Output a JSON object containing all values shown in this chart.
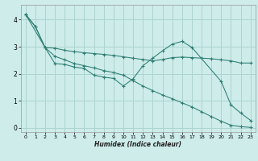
{
  "xlabel": "Humidex (Indice chaleur)",
  "background_color": "#cdecea",
  "grid_color": "#aed4d0",
  "line_color": "#2e7d72",
  "x_ticks": [
    0,
    1,
    2,
    3,
    4,
    5,
    6,
    7,
    8,
    9,
    10,
    11,
    12,
    13,
    14,
    15,
    16,
    17,
    18,
    19,
    20,
    21,
    22,
    23
  ],
  "y_ticks": [
    0,
    1,
    2,
    3,
    4
  ],
  "ylim": [
    -0.15,
    4.55
  ],
  "xlim": [
    -0.5,
    23.5
  ],
  "line1_x": [
    0,
    1,
    2,
    3,
    4,
    5,
    6,
    7,
    8,
    9,
    10,
    11,
    12,
    13,
    14,
    15,
    16,
    17,
    18,
    19,
    20,
    21,
    22,
    23
  ],
  "line1_y": [
    4.2,
    3.75,
    2.97,
    2.95,
    2.87,
    2.82,
    2.78,
    2.75,
    2.72,
    2.68,
    2.63,
    2.58,
    2.53,
    2.48,
    2.53,
    2.6,
    2.62,
    2.6,
    2.58,
    2.56,
    2.52,
    2.48,
    2.4,
    2.4
  ],
  "line2_x": [
    0,
    2,
    3,
    4,
    5,
    6,
    7,
    8,
    9,
    10,
    11,
    12,
    13,
    14,
    15,
    16,
    17,
    20,
    21,
    22,
    23
  ],
  "line2_y": [
    4.2,
    2.97,
    2.38,
    2.35,
    2.25,
    2.2,
    1.95,
    1.88,
    1.83,
    1.55,
    1.82,
    2.3,
    2.58,
    2.85,
    3.1,
    3.2,
    2.98,
    1.72,
    0.85,
    0.55,
    0.28
  ],
  "line3_x": [
    0,
    1,
    2,
    3,
    4,
    5,
    6,
    7,
    8,
    9,
    10,
    11,
    12,
    13,
    14,
    15,
    16,
    17,
    18,
    19,
    20,
    21,
    22,
    23
  ],
  "line3_y": [
    4.2,
    3.75,
    2.97,
    2.65,
    2.52,
    2.38,
    2.3,
    2.22,
    2.12,
    2.05,
    1.95,
    1.75,
    1.55,
    1.38,
    1.22,
    1.08,
    0.93,
    0.78,
    0.6,
    0.42,
    0.25,
    0.1,
    0.05,
    0.02
  ]
}
